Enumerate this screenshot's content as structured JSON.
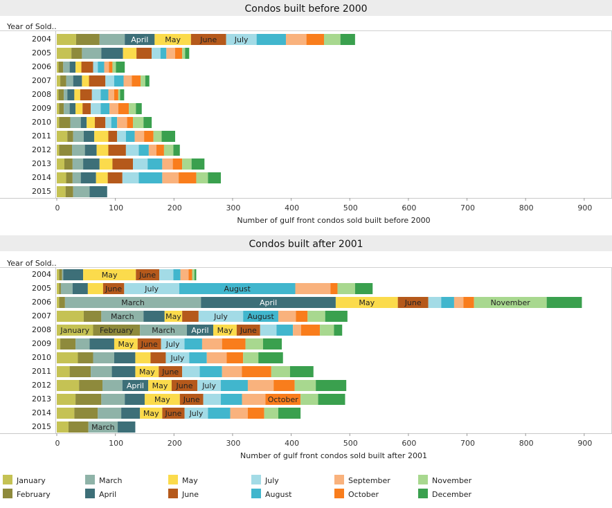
{
  "months": [
    "January",
    "February",
    "March",
    "April",
    "May",
    "June",
    "July",
    "August",
    "September",
    "October",
    "November",
    "December"
  ],
  "colors": {
    "January": "#c5c254",
    "February": "#8e8a3c",
    "March": "#8fb3a8",
    "April": "#3d6f78",
    "May": "#fbdb4c",
    "June": "#b5591b",
    "July": "#a3dbe6",
    "August": "#41b6cd",
    "September": "#f9b27d",
    "October": "#f97d1c",
    "November": "#a8d88f",
    "December": "#3aa04e"
  },
  "legend": {
    "January": "January",
    "February": "February",
    "March": "March",
    "April": "April",
    "May": "May",
    "June": "June",
    "July": "July",
    "August": "August",
    "September": "September",
    "October": "October",
    "November": "November",
    "December": "December"
  },
  "chart_data": [
    {
      "type": "bar",
      "orientation": "horizontal",
      "stacked": true,
      "title": "Condos built before 2000",
      "xlabel": "Number of gulf front condos sold built before 2000",
      "ylabel": "Year of Sold..",
      "xlim": [
        0,
        940
      ],
      "xticks": [
        0,
        100,
        200,
        300,
        400,
        500,
        600,
        700,
        800,
        900
      ],
      "categories": [
        "2004",
        "2005",
        "2006",
        "2007",
        "2008",
        "2009",
        "2010",
        "2011",
        "2012",
        "2013",
        "2014",
        "2015"
      ],
      "series": [
        {
          "name": "January",
          "values": [
            33,
            25,
            3,
            6,
            3,
            4,
            4,
            18,
            4,
            13,
            16,
            15
          ]
        },
        {
          "name": "February",
          "values": [
            40,
            18,
            8,
            10,
            9,
            8,
            19,
            10,
            22,
            14,
            11,
            13
          ]
        },
        {
          "name": "March",
          "values": [
            43,
            33,
            11,
            12,
            6,
            10,
            18,
            18,
            22,
            18,
            14,
            28
          ]
        },
        {
          "name": "April",
          "values": [
            51,
            37,
            10,
            15,
            12,
            10,
            10,
            18,
            20,
            28,
            26,
            30
          ]
        },
        {
          "name": "May",
          "values": [
            62,
            23,
            10,
            12,
            10,
            12,
            14,
            24,
            20,
            22,
            20,
            0
          ]
        },
        {
          "name": "June",
          "values": [
            60,
            26,
            20,
            28,
            20,
            14,
            18,
            15,
            30,
            35,
            25,
            0
          ]
        },
        {
          "name": "July",
          "values": [
            52,
            15,
            8,
            15,
            15,
            17,
            10,
            15,
            22,
            25,
            28,
            0
          ]
        },
        {
          "name": "August",
          "values": [
            50,
            10,
            11,
            16,
            13,
            15,
            10,
            15,
            17,
            25,
            40,
            0
          ]
        },
        {
          "name": "September",
          "values": [
            35,
            15,
            8,
            14,
            10,
            15,
            17,
            16,
            13,
            18,
            28,
            0
          ]
        },
        {
          "name": "October",
          "values": [
            30,
            12,
            6,
            15,
            7,
            18,
            10,
            16,
            13,
            16,
            30,
            0
          ]
        },
        {
          "name": "November",
          "values": [
            28,
            5,
            6,
            8,
            3,
            12,
            18,
            14,
            16,
            16,
            20,
            0
          ]
        },
        {
          "name": "December",
          "values": [
            25,
            7,
            15,
            7,
            7,
            10,
            14,
            23,
            11,
            22,
            22,
            0
          ]
        }
      ]
    },
    {
      "type": "bar",
      "orientation": "horizontal",
      "stacked": true,
      "title": "Condos built after 2001",
      "xlabel": "Number of gulf front condos sold built after 2001",
      "ylabel": "Year of Sold..",
      "xlim": [
        0,
        940
      ],
      "xticks": [
        0,
        100,
        200,
        300,
        400,
        500,
        600,
        700,
        800,
        900
      ],
      "categories": [
        "2004",
        "2005",
        "2006",
        "2007",
        "2008",
        "2009",
        "2010",
        "2011",
        "2012",
        "2013",
        "2014",
        "2015"
      ],
      "series": [
        {
          "name": "January",
          "values": [
            4,
            4,
            4,
            46,
            62,
            6,
            36,
            22,
            38,
            32,
            30,
            20
          ]
        },
        {
          "name": "February",
          "values": [
            5,
            3,
            10,
            30,
            80,
            26,
            26,
            36,
            40,
            44,
            40,
            34
          ]
        },
        {
          "name": "March",
          "values": [
            2,
            20,
            232,
            72,
            80,
            24,
            36,
            36,
            34,
            40,
            40,
            50
          ]
        },
        {
          "name": "April",
          "values": [
            34,
            26,
            230,
            36,
            45,
            42,
            36,
            40,
            44,
            34,
            32,
            30
          ]
        },
        {
          "name": "May",
          "values": [
            90,
            26,
            106,
            30,
            40,
            40,
            26,
            40,
            40,
            60,
            38,
            0
          ]
        },
        {
          "name": "June",
          "values": [
            40,
            36,
            52,
            28,
            40,
            40,
            26,
            40,
            44,
            40,
            38,
            0
          ]
        },
        {
          "name": "July",
          "values": [
            24,
            94,
            22,
            76,
            28,
            40,
            40,
            30,
            40,
            30,
            40,
            0
          ]
        },
        {
          "name": "August",
          "values": [
            12,
            198,
            22,
            60,
            28,
            30,
            30,
            38,
            46,
            36,
            38,
            0
          ]
        },
        {
          "name": "September",
          "values": [
            14,
            60,
            16,
            30,
            14,
            34,
            34,
            34,
            44,
            40,
            30,
            0
          ]
        },
        {
          "name": "October",
          "values": [
            6,
            12,
            18,
            20,
            32,
            40,
            28,
            50,
            36,
            60,
            28,
            0
          ]
        },
        {
          "name": "November",
          "values": [
            4,
            30,
            124,
            30,
            24,
            30,
            26,
            32,
            36,
            30,
            24,
            0
          ]
        },
        {
          "name": "December",
          "values": [
            3,
            30,
            60,
            38,
            14,
            32,
            42,
            40,
            52,
            46,
            38,
            0
          ]
        }
      ]
    }
  ]
}
